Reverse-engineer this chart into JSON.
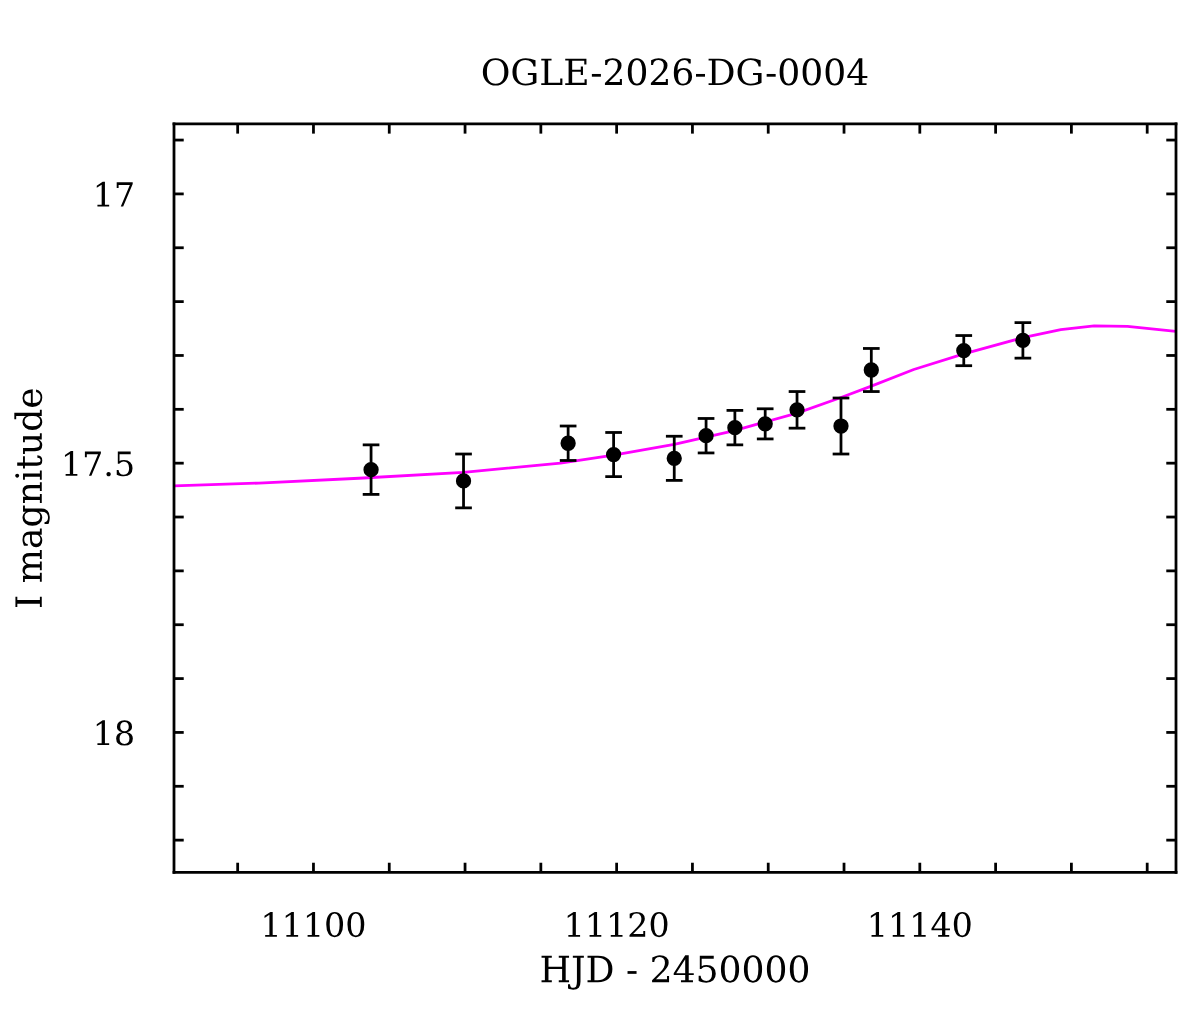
{
  "chart_data": {
    "type": "scatter",
    "title": "OGLE-2026-DG-0004",
    "xlabel": "HJD - 2450000",
    "ylabel": "I magnitude",
    "xlim": [
      11090.8,
      11156.9
    ],
    "ylim": [
      18.26,
      16.87
    ],
    "xticks": [
      {
        "value": 11095,
        "label": null
      },
      11100,
      {
        "value": 11105,
        "label": null
      },
      {
        "value": 11110,
        "label": null
      },
      {
        "value": 11115,
        "label": null
      },
      11120,
      {
        "value": 11125,
        "label": null
      },
      {
        "value": 11130,
        "label": null
      },
      {
        "value": 11135,
        "label": null
      },
      11140,
      {
        "value": 11145,
        "label": null
      },
      {
        "value": 11150,
        "label": null
      },
      {
        "value": 11155,
        "label": null
      }
    ],
    "yticks": [
      {
        "value": 16.9,
        "label": null
      },
      17,
      {
        "value": 17.1,
        "label": null
      },
      {
        "value": 17.2,
        "label": null
      },
      {
        "value": 17.3,
        "label": null
      },
      {
        "value": 17.4,
        "label": null
      },
      17.5,
      {
        "value": 17.6,
        "label": null
      },
      {
        "value": 17.7,
        "label": null
      },
      {
        "value": 17.8,
        "label": null
      },
      {
        "value": 17.9,
        "label": null
      },
      18,
      {
        "value": 18.1,
        "label": null
      },
      {
        "value": 18.2,
        "label": null
      }
    ],
    "grid": false,
    "legend": false,
    "series": [
      {
        "type": "line",
        "color": "#ff00ff",
        "marker": "none",
        "line_style": "solid",
        "x": [
          11090.8,
          11096.4,
          11103.0,
          11109.9,
          11116.3,
          11119.8,
          11123.8,
          11127.7,
          11131.9,
          11134.8,
          11136.8,
          11139.6,
          11142.9,
          11146.8,
          11149.3,
          11151.5,
          11153.7,
          11156.8
        ],
        "values": [
          17.542,
          17.537,
          17.528,
          17.517,
          17.5,
          17.485,
          17.465,
          17.44,
          17.407,
          17.378,
          17.357,
          17.326,
          17.297,
          17.267,
          17.252,
          17.245,
          17.246,
          17.255
        ]
      },
      {
        "color": "#000000",
        "marker": "circle",
        "x": [
          11103.8,
          11109.9,
          11116.8,
          11119.8,
          11123.8,
          11125.9,
          11127.8,
          11129.8,
          11131.9,
          11134.8,
          11136.8,
          11142.9,
          11146.8
        ],
        "values": [
          17.512,
          17.533,
          17.463,
          17.484,
          17.491,
          17.449,
          17.434,
          17.427,
          17.401,
          17.431,
          17.327,
          17.291,
          17.272
        ],
        "errors": [
          0.046,
          0.05,
          0.032,
          0.041,
          0.041,
          0.032,
          0.032,
          0.028,
          0.034,
          0.052,
          0.04,
          0.028,
          0.033
        ]
      }
    ]
  }
}
